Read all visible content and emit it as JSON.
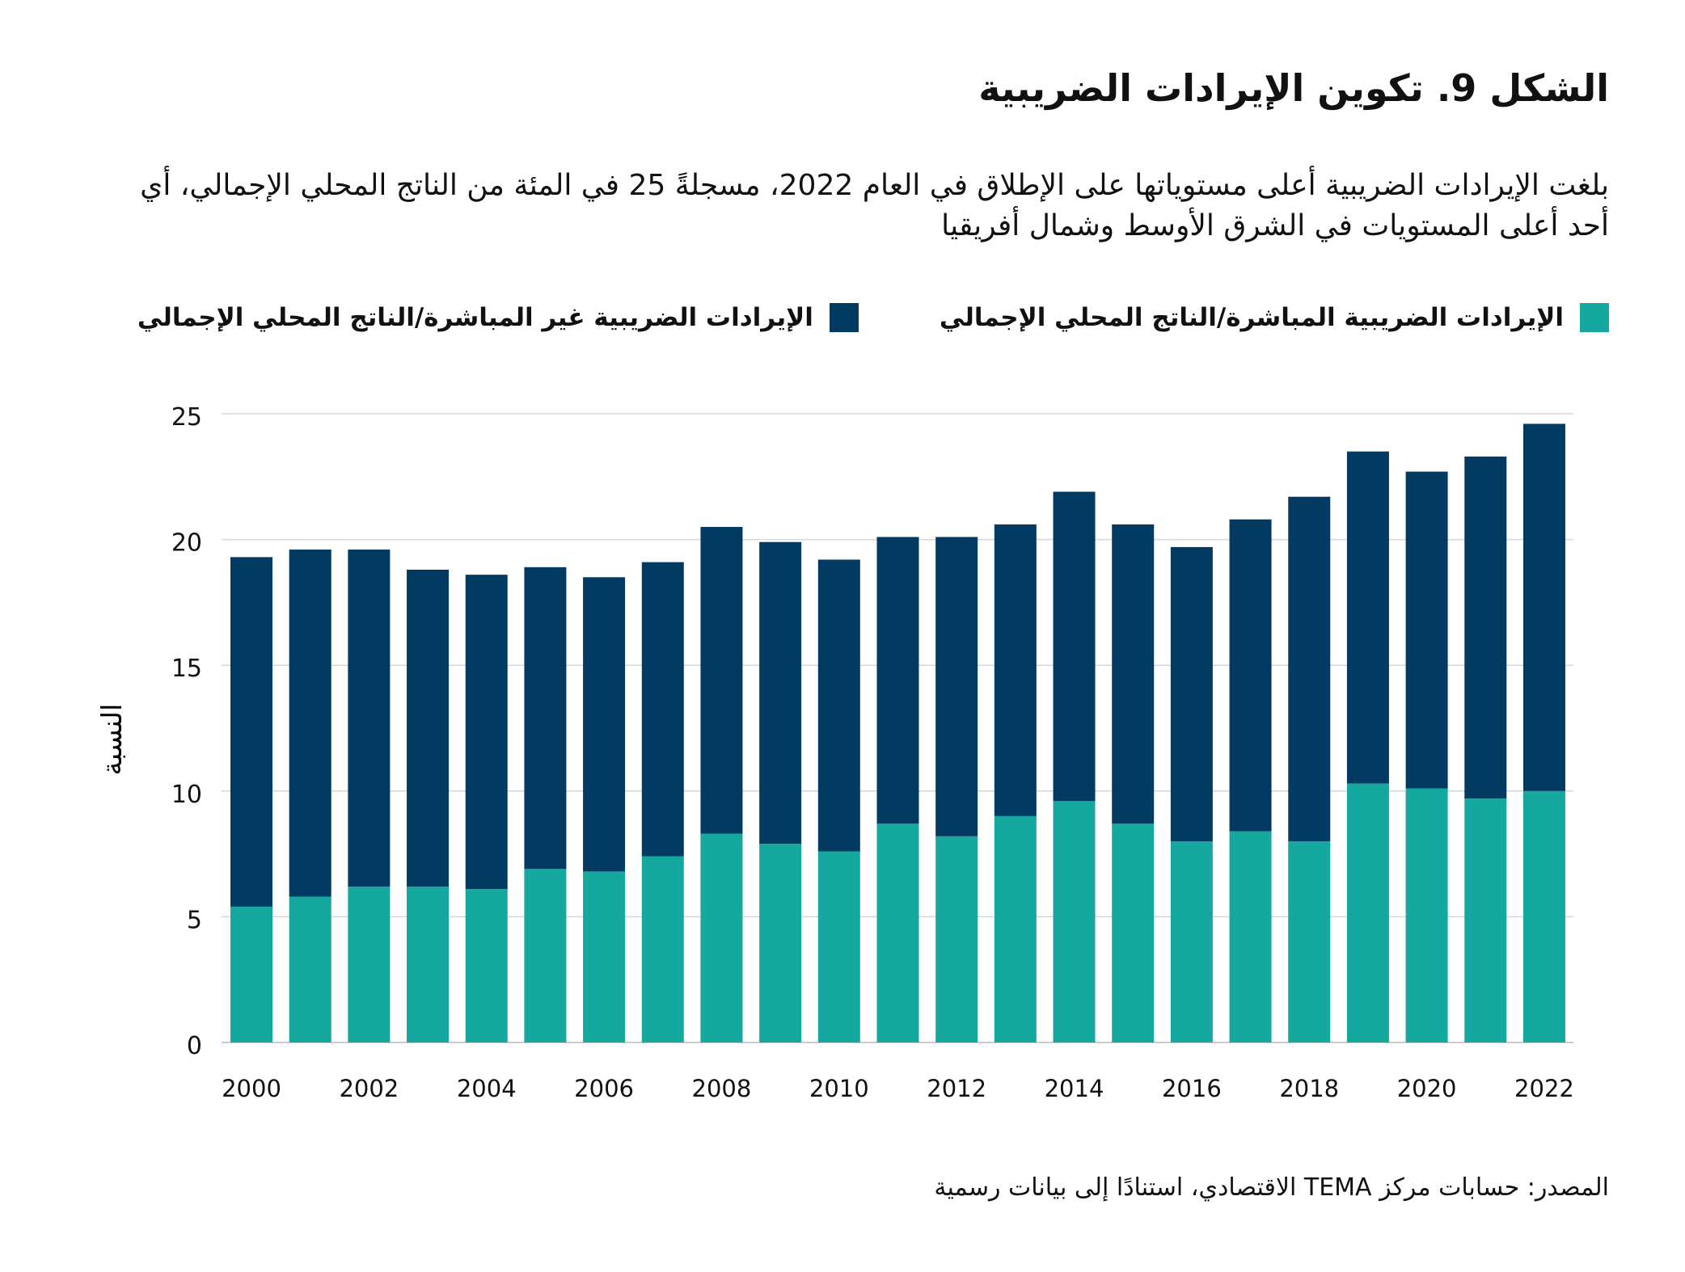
{
  "title": "الشكل 9. تكوين الإيرادات الضريبية",
  "subtitle": "بلغت الإيرادات الضريبية أعلى مستوياتها على الإطلاق في العام 2022، مسجلةً 25 في المئة من الناتج المحلي الإجمالي، أي أحد أعلى المستويات في الشرق الأوسط وشمال أفريقيا",
  "source": "المصدر: حسابات مركز TEMA الاقتصادي، استنادًا إلى بيانات رسمية",
  "chart_data": {
    "type": "bar",
    "stacked": true,
    "ylabel": "النسبة",
    "xlabel": "",
    "ylim": [
      0,
      25
    ],
    "yticks": [
      "0",
      "5",
      "10",
      "15",
      "20",
      "25"
    ],
    "grid": true,
    "legend_position": "top",
    "x_tick_labels": [
      "2000",
      "2002",
      "2004",
      "2006",
      "2008",
      "2010",
      "2012",
      "2014",
      "2016",
      "2018",
      "2020",
      "2022"
    ],
    "categories": [
      "2000",
      "2001",
      "2002",
      "2003",
      "2004",
      "2005",
      "2006",
      "2007",
      "2008",
      "2009",
      "2010",
      "2011",
      "2012",
      "2013",
      "2014",
      "2015",
      "2016",
      "2017",
      "2018",
      "2019",
      "2020",
      "2021",
      "2022"
    ],
    "series": [
      {
        "name": "الإيرادات الضريبية المباشرة/الناتج المحلي الإجمالي",
        "color": "#14a89e",
        "values": [
          5.4,
          5.8,
          6.2,
          6.2,
          6.1,
          6.9,
          6.8,
          7.4,
          8.3,
          7.9,
          7.6,
          8.7,
          8.2,
          9.0,
          9.6,
          8.7,
          8.0,
          8.4,
          8.0,
          10.3,
          10.1,
          9.7,
          10.0
        ]
      },
      {
        "name": "الإيرادات الضريبية غير المباشرة/الناتج المحلي الإجمالي",
        "color": "#023a62",
        "values": [
          13.9,
          13.8,
          13.4,
          12.6,
          12.5,
          12.0,
          11.7,
          11.7,
          12.2,
          12.0,
          11.6,
          11.4,
          11.9,
          11.6,
          12.3,
          11.9,
          11.7,
          12.4,
          13.7,
          13.2,
          12.6,
          13.6,
          14.6
        ]
      }
    ]
  }
}
